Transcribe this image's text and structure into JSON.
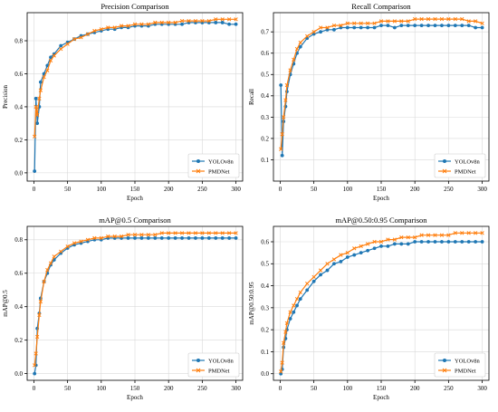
{
  "colors": {
    "series1": "#1f77b4",
    "series2": "#ff7f0e",
    "grid": "#d9d9d9",
    "axis": "#000000"
  },
  "chart_data": [
    {
      "type": "line",
      "title": "Precision Comparison",
      "xlabel": "Epoch",
      "ylabel": "Precision",
      "xlim": [
        -10,
        310
      ],
      "ylim": [
        -0.05,
        0.97
      ],
      "xticks": [
        0,
        50,
        100,
        150,
        200,
        250,
        300
      ],
      "yticks": [
        0.0,
        0.2,
        0.4,
        0.6,
        0.8
      ],
      "grid": true,
      "legend": "bottom-right",
      "x": [
        1,
        3,
        5,
        8,
        10,
        15,
        20,
        25,
        30,
        40,
        50,
        60,
        70,
        80,
        90,
        100,
        110,
        120,
        130,
        140,
        150,
        160,
        170,
        180,
        190,
        200,
        210,
        220,
        230,
        240,
        250,
        260,
        270,
        280,
        290,
        300
      ],
      "series": [
        {
          "name": "YOLOv8n",
          "marker": "circle",
          "values": [
            0.01,
            0.45,
            0.3,
            0.4,
            0.55,
            0.6,
            0.65,
            0.7,
            0.72,
            0.77,
            0.79,
            0.81,
            0.83,
            0.84,
            0.85,
            0.86,
            0.87,
            0.87,
            0.88,
            0.88,
            0.89,
            0.89,
            0.89,
            0.9,
            0.9,
            0.9,
            0.9,
            0.9,
            0.91,
            0.91,
            0.91,
            0.91,
            0.91,
            0.91,
            0.9,
            0.9
          ]
        },
        {
          "name": "PMDNet",
          "marker": "x",
          "values": [
            0.22,
            0.4,
            0.35,
            0.45,
            0.5,
            0.58,
            0.62,
            0.68,
            0.71,
            0.75,
            0.78,
            0.81,
            0.82,
            0.84,
            0.86,
            0.87,
            0.88,
            0.88,
            0.89,
            0.89,
            0.9,
            0.9,
            0.9,
            0.91,
            0.91,
            0.91,
            0.91,
            0.92,
            0.92,
            0.92,
            0.92,
            0.92,
            0.93,
            0.93,
            0.93,
            0.93
          ]
        }
      ]
    },
    {
      "type": "line",
      "title": "Recall Comparison",
      "xlabel": "Epoch",
      "ylabel": "Recall",
      "xlim": [
        -10,
        310
      ],
      "ylim": [
        0.0,
        0.79
      ],
      "xticks": [
        0,
        50,
        100,
        150,
        200,
        250,
        300
      ],
      "yticks": [
        0.1,
        0.2,
        0.3,
        0.4,
        0.5,
        0.6,
        0.7
      ],
      "grid": true,
      "legend": "bottom-right",
      "x": [
        1,
        3,
        5,
        8,
        10,
        15,
        20,
        25,
        30,
        40,
        50,
        60,
        70,
        80,
        90,
        100,
        110,
        120,
        130,
        140,
        150,
        160,
        170,
        180,
        190,
        200,
        210,
        220,
        230,
        240,
        250,
        260,
        270,
        280,
        290,
        300
      ],
      "series": [
        {
          "name": "YOLOv8n",
          "marker": "circle",
          "values": [
            0.45,
            0.12,
            0.28,
            0.35,
            0.42,
            0.5,
            0.55,
            0.6,
            0.63,
            0.67,
            0.69,
            0.7,
            0.71,
            0.71,
            0.72,
            0.72,
            0.72,
            0.72,
            0.72,
            0.72,
            0.73,
            0.73,
            0.72,
            0.73,
            0.73,
            0.73,
            0.73,
            0.73,
            0.73,
            0.73,
            0.73,
            0.73,
            0.73,
            0.73,
            0.72,
            0.72
          ]
        },
        {
          "name": "PMDNet",
          "marker": "x",
          "values": [
            0.15,
            0.22,
            0.3,
            0.38,
            0.45,
            0.52,
            0.57,
            0.62,
            0.65,
            0.68,
            0.7,
            0.72,
            0.72,
            0.73,
            0.73,
            0.74,
            0.74,
            0.74,
            0.74,
            0.74,
            0.75,
            0.75,
            0.75,
            0.75,
            0.75,
            0.76,
            0.76,
            0.76,
            0.76,
            0.76,
            0.76,
            0.76,
            0.76,
            0.75,
            0.75,
            0.74
          ]
        }
      ]
    },
    {
      "type": "line",
      "title": "mAP@0.5 Comparison",
      "xlabel": "Epoch",
      "ylabel": "mAP@0.5",
      "xlim": [
        -10,
        310
      ],
      "ylim": [
        -0.04,
        0.88
      ],
      "xticks": [
        0,
        50,
        100,
        150,
        200,
        250,
        300
      ],
      "yticks": [
        0.0,
        0.2,
        0.4,
        0.6,
        0.8
      ],
      "grid": true,
      "legend": "bottom-right",
      "x": [
        1,
        3,
        5,
        8,
        10,
        15,
        20,
        25,
        30,
        40,
        50,
        60,
        70,
        80,
        90,
        100,
        110,
        120,
        130,
        140,
        150,
        160,
        170,
        180,
        190,
        200,
        210,
        220,
        230,
        240,
        250,
        260,
        270,
        280,
        290,
        300
      ],
      "series": [
        {
          "name": "YOLOv8n",
          "marker": "circle",
          "values": [
            0.0,
            0.05,
            0.27,
            0.36,
            0.45,
            0.55,
            0.6,
            0.65,
            0.68,
            0.72,
            0.75,
            0.77,
            0.78,
            0.79,
            0.8,
            0.8,
            0.81,
            0.81,
            0.81,
            0.81,
            0.81,
            0.81,
            0.81,
            0.81,
            0.81,
            0.81,
            0.81,
            0.81,
            0.81,
            0.81,
            0.81,
            0.81,
            0.81,
            0.81,
            0.81,
            0.81
          ]
        },
        {
          "name": "PMDNet",
          "marker": "x",
          "values": [
            0.05,
            0.12,
            0.22,
            0.35,
            0.43,
            0.55,
            0.62,
            0.66,
            0.7,
            0.73,
            0.76,
            0.78,
            0.79,
            0.8,
            0.81,
            0.81,
            0.82,
            0.82,
            0.82,
            0.83,
            0.83,
            0.83,
            0.83,
            0.83,
            0.84,
            0.84,
            0.84,
            0.84,
            0.84,
            0.84,
            0.84,
            0.84,
            0.84,
            0.84,
            0.84,
            0.84
          ]
        }
      ]
    },
    {
      "type": "line",
      "title": "mAP@0.50:0.95 Comparison",
      "xlabel": "Epoch",
      "ylabel": "mAP@0.50:0.95",
      "xlim": [
        -10,
        310
      ],
      "ylim": [
        -0.03,
        0.67
      ],
      "xticks": [
        0,
        50,
        100,
        150,
        200,
        250,
        300
      ],
      "yticks": [
        0.0,
        0.1,
        0.2,
        0.3,
        0.4,
        0.5,
        0.6
      ],
      "grid": true,
      "legend": "bottom-right",
      "x": [
        1,
        3,
        5,
        8,
        10,
        15,
        20,
        25,
        30,
        40,
        50,
        60,
        70,
        80,
        90,
        100,
        110,
        120,
        130,
        140,
        150,
        160,
        170,
        180,
        190,
        200,
        210,
        220,
        230,
        240,
        250,
        260,
        270,
        280,
        290,
        300
      ],
      "series": [
        {
          "name": "YOLOv8n",
          "marker": "circle",
          "values": [
            0.0,
            0.02,
            0.12,
            0.16,
            0.2,
            0.25,
            0.28,
            0.31,
            0.34,
            0.38,
            0.42,
            0.45,
            0.47,
            0.5,
            0.51,
            0.53,
            0.54,
            0.55,
            0.56,
            0.57,
            0.58,
            0.58,
            0.59,
            0.59,
            0.59,
            0.6,
            0.6,
            0.6,
            0.6,
            0.6,
            0.6,
            0.6,
            0.6,
            0.6,
            0.6,
            0.6
          ]
        },
        {
          "name": "PMDNet",
          "marker": "x",
          "values": [
            0.01,
            0.05,
            0.14,
            0.19,
            0.23,
            0.28,
            0.31,
            0.34,
            0.37,
            0.41,
            0.44,
            0.47,
            0.5,
            0.52,
            0.54,
            0.55,
            0.57,
            0.58,
            0.59,
            0.6,
            0.6,
            0.61,
            0.61,
            0.62,
            0.62,
            0.62,
            0.63,
            0.63,
            0.63,
            0.63,
            0.63,
            0.64,
            0.64,
            0.64,
            0.64,
            0.64
          ]
        }
      ]
    }
  ]
}
